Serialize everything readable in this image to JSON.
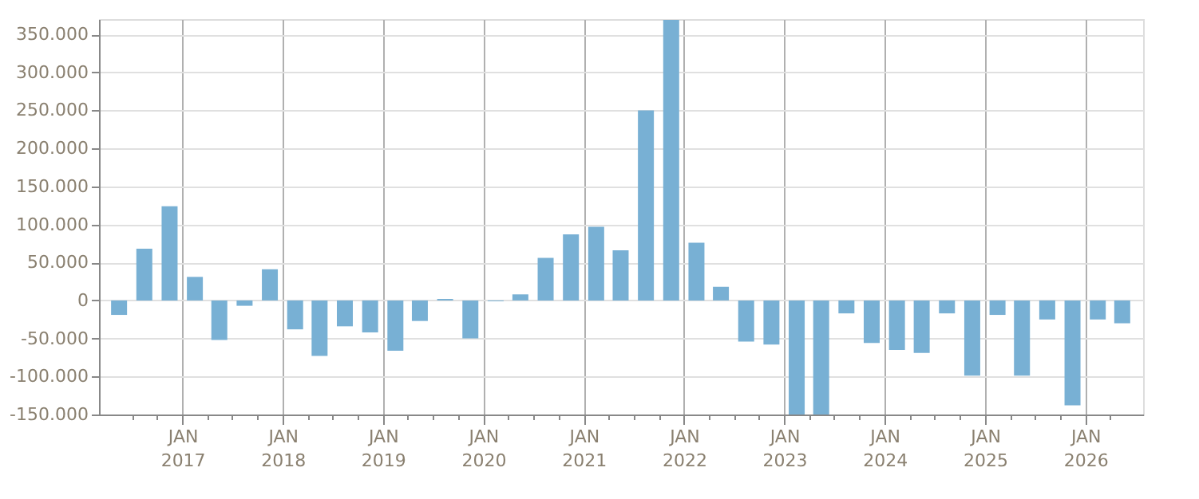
{
  "chart_data": {
    "type": "bar",
    "x": [
      "2016-05-15",
      "2016-08-15",
      "2016-11-15",
      "2017-02-15",
      "2017-05-15",
      "2017-08-15",
      "2017-11-15",
      "2018-02-15",
      "2018-05-15",
      "2018-08-15",
      "2018-11-15",
      "2019-02-15",
      "2019-05-15",
      "2019-08-15",
      "2019-11-15",
      "2020-02-15",
      "2020-05-15",
      "2020-08-15",
      "2020-11-15",
      "2021-02-15",
      "2021-05-15",
      "2021-08-15",
      "2021-11-15",
      "2022-02-15",
      "2022-05-15",
      "2022-08-15",
      "2022-11-15",
      "2023-02-15",
      "2023-05-15",
      "2023-08-15",
      "2023-11-15",
      "2024-02-15",
      "2024-05-15",
      "2024-08-15",
      "2024-11-15",
      "2025-02-15",
      "2025-05-15",
      "2025-08-15",
      "2025-11-15",
      "2026-02-15",
      "2026-05-15"
    ],
    "series": [
      {
        "color": "#78b0d4",
        "values": [
          -19000,
          68000,
          124000,
          31000,
          -52000,
          -7000,
          41000,
          -38000,
          -73000,
          -34000,
          -42000,
          -66000,
          -27000,
          2000,
          -50000,
          -1000,
          8000,
          56000,
          87000,
          97000,
          66000,
          250000,
          369000,
          76000,
          18000,
          -54000,
          -58000,
          -150000,
          -150000,
          -17000,
          -56000,
          -65000,
          -69000,
          -17000,
          -99000,
          -19000,
          -99000,
          -25000,
          -138000,
          -25000,
          -30000
        ]
      }
    ],
    "xlim": [
      "2016-04",
      "2026-07"
    ],
    "xticks": [
      {
        "value": "2016-07",
        "label": null
      },
      {
        "value": "2016-10",
        "label": null
      },
      {
        "value": "2017-01",
        "label": "JAN\n2017"
      },
      {
        "value": "2017-04",
        "label": null
      },
      {
        "value": "2017-07",
        "label": null
      },
      {
        "value": "2017-10",
        "label": null
      },
      {
        "value": "2018-01",
        "label": "JAN\n2018"
      },
      {
        "value": "2018-04",
        "label": null
      },
      {
        "value": "2018-07",
        "label": null
      },
      {
        "value": "2018-10",
        "label": null
      },
      {
        "value": "2019-01",
        "label": "JAN\n2019"
      },
      {
        "value": "2019-04",
        "label": null
      },
      {
        "value": "2019-07",
        "label": null
      },
      {
        "value": "2019-10",
        "label": null
      },
      {
        "value": "2020-01",
        "label": "JAN\n2020"
      },
      {
        "value": "2020-04",
        "label": null
      },
      {
        "value": "2020-07",
        "label": null
      },
      {
        "value": "2020-10",
        "label": null
      },
      {
        "value": "2021-01",
        "label": "JAN\n2021"
      },
      {
        "value": "2021-04",
        "label": null
      },
      {
        "value": "2021-07",
        "label": null
      },
      {
        "value": "2021-10",
        "label": null
      },
      {
        "value": "2022-01",
        "label": "JAN\n2022"
      },
      {
        "value": "2022-04",
        "label": null
      },
      {
        "value": "2022-07",
        "label": null
      },
      {
        "value": "2022-10",
        "label": null
      },
      {
        "value": "2023-01",
        "label": "JAN\n2023"
      },
      {
        "value": "2023-04",
        "label": null
      },
      {
        "value": "2023-07",
        "label": null
      },
      {
        "value": "2023-10",
        "label": null
      },
      {
        "value": "2024-01",
        "label": "JAN\n2024"
      },
      {
        "value": "2024-04",
        "label": null
      },
      {
        "value": "2024-07",
        "label": null
      },
      {
        "value": "2024-10",
        "label": null
      },
      {
        "value": "2025-01",
        "label": "JAN\n2025"
      },
      {
        "value": "2025-04",
        "label": null
      },
      {
        "value": "2025-07",
        "label": null
      },
      {
        "value": "2025-10",
        "label": null
      },
      {
        "value": "2026-01",
        "label": "JAN\n2026"
      },
      {
        "value": "2026-04",
        "label": null
      }
    ],
    "ylim": [
      -150000,
      370000
    ],
    "yticks": [
      {
        "value": -150000,
        "label": "-150.000"
      },
      {
        "value": -100000,
        "label": "-100.000"
      },
      {
        "value": -50000,
        "label": "-50.000"
      },
      {
        "value": 0,
        "label": "0"
      },
      {
        "value": 50000,
        "label": "50.000"
      },
      {
        "value": 100000,
        "label": "100.000"
      },
      {
        "value": 150000,
        "label": "150.000"
      },
      {
        "value": 200000,
        "label": "200.000"
      },
      {
        "value": 250000,
        "label": "250.000"
      },
      {
        "value": 300000,
        "label": "300.000"
      },
      {
        "value": 350000,
        "label": "350.000"
      }
    ],
    "grid": true
  }
}
